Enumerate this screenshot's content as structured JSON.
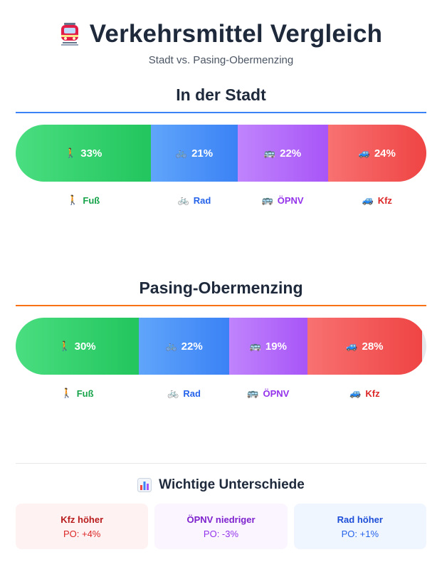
{
  "header": {
    "icon": "tram-icon",
    "title": "Verkehrsmittel Vergleich",
    "subtitle": "Stadt vs. Pasing-Obermenzing"
  },
  "colors": {
    "fuss": "#22c55e",
    "rad": "#3b82f6",
    "oepnv": "#a855f7",
    "kfz": "#ef4444",
    "stadt_accent": "#3b82f6",
    "pasing_accent": "#f97316"
  },
  "sections": [
    {
      "title": "In der Stadt",
      "segments": [
        {
          "key": "fuss",
          "emoji": "🚶",
          "label": "33%",
          "value": 33
        },
        {
          "key": "rad",
          "emoji": "🚲",
          "label": "21%",
          "value": 21
        },
        {
          "key": "oepnv",
          "emoji": "🚌",
          "label": "22%",
          "value": 22
        },
        {
          "key": "kfz",
          "emoji": "🚙",
          "label": "24%",
          "value": 24
        }
      ],
      "legend": [
        {
          "key": "fuss",
          "emoji": "🚶",
          "label": "Fuß"
        },
        {
          "key": "rad",
          "emoji": "🚲",
          "label": "Rad"
        },
        {
          "key": "oepnv",
          "emoji": "🚌",
          "label": "ÖPNV"
        },
        {
          "key": "kfz",
          "emoji": "🚙",
          "label": "Kfz"
        }
      ]
    },
    {
      "title": "Pasing-Obermenzing",
      "segments": [
        {
          "key": "fuss",
          "emoji": "🚶",
          "label": "30%",
          "value": 30
        },
        {
          "key": "rad",
          "emoji": "🚲",
          "label": "22%",
          "value": 22
        },
        {
          "key": "oepnv",
          "emoji": "🚌",
          "label": "19%",
          "value": 19
        },
        {
          "key": "kfz",
          "emoji": "🚙",
          "label": "28%",
          "value": 28
        }
      ],
      "legend": [
        {
          "key": "fuss",
          "emoji": "🚶",
          "label": "Fuß"
        },
        {
          "key": "rad",
          "emoji": "🚲",
          "label": "Rad"
        },
        {
          "key": "oepnv",
          "emoji": "🚌",
          "label": "ÖPNV"
        },
        {
          "key": "kfz",
          "emoji": "🚙",
          "label": "Kfz"
        }
      ]
    }
  ],
  "differences": {
    "icon": "bar-chart-icon",
    "title": "Wichtige Unterschiede",
    "cards": [
      {
        "title": "Kfz höher",
        "value": "PO: +4%"
      },
      {
        "title": "ÖPNV niedriger",
        "value": "PO: -3%"
      },
      {
        "title": "Rad höher",
        "value": "PO: +1%"
      }
    ]
  }
}
